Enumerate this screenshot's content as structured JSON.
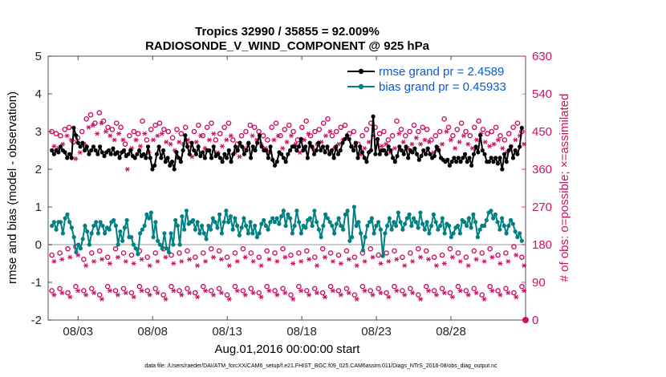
{
  "chart_data": {
    "type": "line",
    "title_line1": "Tropics 32990 / 35855 = 92.009%",
    "title_line2": "RADIOSONDE_V_WIND_COMPONENT @ 925 hPa",
    "xlabel": "Aug.01,2016 00:00:00 start",
    "ylabel_left": "rmse and bias (model - observation)",
    "ylabel_right": "# of obs: o=possible; ×=assimilated",
    "footer": "data file: /Users/raeder/DAI/ATM_forcXX/CAM6_setup/f.e21.FHIST_BGC.f09_025.CAM6assim.011/Diags_NTrS_2016-08/obs_diag_output.nc",
    "xlim": [
      1,
      33
    ],
    "ylim_left": [
      -2,
      5
    ],
    "ylim_right": [
      0,
      630
    ],
    "x_ticks": [
      3,
      8,
      13,
      18,
      23,
      28
    ],
    "x_tick_labels": [
      "08/03",
      "08/08",
      "08/13",
      "08/18",
      "08/23",
      "08/28"
    ],
    "y_left_ticks": [
      -2,
      -1,
      0,
      1,
      2,
      3,
      4,
      5
    ],
    "y_left_tick_labels": [
      "-2",
      "-1",
      "0",
      "1",
      "2",
      "3",
      "4",
      "5"
    ],
    "y_right_ticks": [
      0,
      90,
      180,
      270,
      360,
      450,
      540,
      630
    ],
    "y_right_tick_labels": [
      "0",
      "90",
      "180",
      "270",
      "360",
      "450",
      "540",
      "630"
    ],
    "legend": [
      {
        "name": "rmse grand pr = 2.4589",
        "color": "#000000"
      },
      {
        "name": "bias grand pr = 0.45933",
        "color": "#008080"
      }
    ],
    "colors": {
      "rmse": "#000000",
      "bias": "#008080",
      "obs": "#cc1166",
      "zero_line": "#bbbbbb"
    },
    "x_step": 0.25,
    "rmse": [
      2.5,
      2.4,
      2.5,
      2.45,
      2.6,
      2.5,
      2.45,
      2.3,
      2.4,
      2.3,
      3.1,
      2.9,
      2.7,
      2.6,
      2.7,
      2.5,
      2.6,
      2.4,
      2.5,
      2.6,
      2.5,
      2.4,
      2.6,
      2.45,
      2.35,
      2.45,
      2.5,
      2.4,
      2.55,
      2.4,
      2.45,
      2.3,
      2.45,
      2.5,
      2.35,
      2.4,
      2.5,
      2.35,
      2.3,
      2.4,
      2.5,
      2.35,
      2.4,
      2.3,
      2.6,
      2.3,
      2.0,
      2.1,
      2.4,
      2.6,
      2.3,
      2.5,
      2.2,
      2.3,
      2.1,
      2.2,
      2.0,
      2.45,
      2.3,
      2.2,
      2.5,
      2.9,
      2.6,
      2.4,
      2.7,
      2.5,
      2.4,
      2.6,
      2.35,
      2.45,
      2.3,
      2.5,
      2.5,
      2.3,
      2.6,
      2.35,
      2.4,
      2.3,
      2.2,
      2.4,
      2.3,
      2.5,
      2.2,
      2.4,
      2.6,
      2.5,
      2.7,
      2.6,
      2.4,
      2.5,
      2.7,
      2.3,
      2.6,
      2.5,
      2.7,
      2.9,
      2.6,
      2.5,
      2.5,
      2.3,
      2.6,
      2.25,
      2.1,
      2.2,
      2.45,
      2.4,
      2.3,
      2.2,
      2.4,
      2.5,
      2.6,
      2.6,
      2.5,
      2.6,
      2.8,
      2.5,
      2.6,
      2.3,
      2.7,
      2.6,
      2.4,
      2.5,
      2.7,
      2.5,
      2.6,
      2.45,
      2.6,
      2.4,
      2.5,
      2.3,
      2.6,
      2.4,
      2.5,
      2.7,
      2.8,
      2.9,
      2.8,
      2.6,
      2.5,
      2.7,
      2.3,
      2.6,
      2.45,
      2.3,
      2.2,
      2.45,
      2.5,
      3.4,
      2.4,
      2.8,
      2.4,
      2.5,
      2.5,
      2.4,
      2.6,
      2.5,
      2.3,
      2.2,
      2.35,
      2.6,
      2.5,
      2.4,
      2.6,
      2.3,
      2.5,
      2.45,
      2.55,
      2.4,
      2.25,
      2.35,
      2.5,
      2.4,
      2.55,
      2.4,
      2.3,
      2.35,
      2.6,
      2.5,
      2.3,
      2.25,
      2.2,
      2.25,
      2.1,
      2.2,
      2.3,
      2.2,
      2.3,
      2.2,
      2.3,
      2.4,
      2.2,
      2.3,
      2.1,
      2.4,
      2.6,
      2.45,
      2.9,
      2.5,
      2.4,
      2.2,
      2.2,
      2.3,
      2.2,
      2.3,
      2.15,
      2.3,
      2.0,
      2.4,
      2.2,
      2.5,
      2.6,
      2.3,
      2.5,
      2.4,
      2.6,
      3.1
    ],
    "bias": [
      0.5,
      0.6,
      0.4,
      0.6,
      0.6,
      0.3,
      0.7,
      0.8,
      0.6,
      0.45,
      0.2,
      -0.2,
      0.0,
      -0.1,
      0.15,
      0.5,
      0.35,
      0.0,
      0.3,
      0.5,
      0.6,
      0.3,
      0.6,
      0.5,
      0.3,
      0.45,
      0.4,
      0.6,
      0.65,
      0.5,
      0.0,
      0.35,
      0.1,
      0.45,
      0.65,
      0.2,
      0.2,
      0.0,
      -0.1,
      -0.25,
      0.3,
      0.4,
      0.5,
      0.8,
      0.7,
      0.85,
      0.2,
      0.6,
      0.1,
      0.0,
      -0.1,
      0.3,
      -0.1,
      -0.2,
      0.3,
      0.0,
      0.65,
      0.5,
      0.0,
      0.75,
      0.4,
      0.9,
      0.55,
      0.6,
      0.65,
      0.4,
      0.6,
      0.3,
      0.5,
      0.3,
      0.15,
      0.5,
      0.4,
      0.7,
      0.6,
      0.45,
      0.8,
      0.3,
      0.6,
      0.9,
      0.6,
      0.75,
      0.4,
      0.7,
      0.5,
      0.25,
      0.45,
      0.7,
      0.5,
      0.3,
      0.6,
      0.3,
      0.5,
      0.2,
      0.3,
      0.55,
      0.65,
      0.5,
      0.4,
      0.6,
      0.7,
      0.6,
      0.7,
      0.55,
      0.75,
      0.9,
      0.5,
      0.8,
      0.7,
      0.3,
      0.5,
      0.9,
      0.6,
      0.3,
      0.5,
      0.45,
      0.65,
      0.7,
      0.5,
      0.9,
      0.6,
      0.4,
      0.2,
      0.5,
      0.8,
      0.7,
      0.6,
      0.5,
      0.3,
      0.55,
      0.7,
      0.5,
      0.4,
      0.8,
      0.9,
      0.1,
      0.2,
      1.0,
      0.5,
      0.6,
      0.3,
      -0.15,
      0.2,
      0.5,
      0.6,
      0.7,
      0.3,
      0.5,
      0.6,
      0.4,
      -0.3,
      0.3,
      0.5,
      0.7,
      0.4,
      0.6,
      0.5,
      0.85,
      0.6,
      0.4,
      0.55,
      0.7,
      0.8,
      0.5,
      0.7,
      0.6,
      0.45,
      0.85,
      0.55,
      0.4,
      0.6,
      0.3,
      0.5,
      0.8,
      0.6,
      0.4,
      0.5,
      0.7,
      0.3,
      0.55,
      0.5,
      0.2,
      0.3,
      0.45,
      0.5,
      0.3,
      0.65,
      0.6,
      0.5,
      0.7,
      0.45,
      0.8,
      0.6,
      0.2,
      0.4,
      0.5,
      0.5,
      0.65,
      0.85,
      0.9,
      0.7,
      0.8,
      0.6,
      0.4,
      0.7,
      0.5,
      0.3,
      0.5,
      0.65,
      0.55,
      0.35,
      0.2,
      0.3,
      0.1
    ],
    "obs_possible": [
      450,
      445,
      440,
      455,
      460,
      425,
      435,
      450,
      480,
      490,
      470,
      495,
      475,
      460,
      455,
      470,
      460,
      420,
      440,
      450,
      445,
      475,
      430,
      455,
      465,
      470,
      455,
      450,
      435,
      455,
      445,
      460,
      420,
      450,
      465,
      440,
      460,
      470,
      430,
      445,
      460,
      470,
      430,
      420,
      440,
      450,
      465,
      460,
      450,
      440,
      430,
      460,
      470,
      440,
      455,
      465,
      450,
      430,
      460,
      475,
      440,
      450,
      455,
      470,
      480,
      440,
      450,
      460,
      465,
      445,
      450,
      420,
      440,
      455,
      470,
      460,
      445,
      450,
      430,
      440,
      475,
      455,
      440,
      450,
      465,
      450,
      460,
      455,
      430,
      440,
      450,
      480,
      460,
      440,
      455,
      470,
      450,
      440,
      460,
      475,
      455,
      445,
      450,
      460,
      440,
      430,
      445,
      460,
      470,
      450
    ],
    "obs_assim": [
      415,
      410,
      420,
      440,
      430,
      385,
      400,
      420,
      460,
      465,
      445,
      470,
      450,
      440,
      430,
      445,
      430,
      360,
      410,
      430,
      415,
      445,
      400,
      430,
      440,
      445,
      425,
      420,
      405,
      425,
      420,
      430,
      390,
      425,
      440,
      410,
      430,
      445,
      400,
      415,
      430,
      440,
      400,
      390,
      410,
      420,
      440,
      430,
      420,
      410,
      400,
      430,
      440,
      410,
      425,
      440,
      420,
      400,
      430,
      445,
      410,
      420,
      425,
      440,
      450,
      410,
      420,
      430,
      435,
      415,
      420,
      395,
      410,
      425,
      440,
      430,
      415,
      420,
      400,
      410,
      445,
      425,
      410,
      420,
      435,
      420,
      430,
      425,
      400,
      410,
      420,
      450,
      430,
      410,
      425,
      440,
      420,
      410,
      430,
      445,
      425,
      415,
      420,
      430,
      410,
      400,
      415,
      430,
      440,
      420
    ],
    "obs_possible_low": [
      155,
      160,
      170,
      175,
      145,
      160,
      165,
      150,
      170,
      160,
      155,
      165,
      150,
      160,
      170,
      155,
      160,
      165,
      150,
      160,
      170,
      165,
      150,
      160,
      170,
      160,
      150,
      165,
      160,
      170,
      155,
      160,
      165,
      150,
      170,
      160,
      155,
      165,
      150,
      160,
      170,
      155,
      160,
      165,
      150,
      160,
      170,
      165,
      150,
      155,
      170,
      160,
      150,
      165,
      160,
      170,
      155,
      160,
      175,
      150
    ],
    "obs_assim_low": [
      140,
      145,
      150,
      155,
      130,
      140,
      145,
      135,
      150,
      140,
      135,
      145,
      130,
      140,
      150,
      135,
      140,
      145,
      130,
      140,
      150,
      145,
      130,
      140,
      150,
      140,
      130,
      145,
      140,
      150,
      135,
      140,
      145,
      130,
      150,
      140,
      135,
      145,
      130,
      140,
      150,
      135,
      140,
      145,
      130,
      140,
      150,
      145,
      130,
      135,
      150,
      140,
      130,
      145,
      140,
      150,
      135,
      140,
      155,
      130
    ],
    "obs_possible_vlow": [
      70,
      75,
      65,
      80,
      70,
      75,
      60,
      80,
      70,
      75,
      65,
      80,
      70,
      75,
      60,
      80,
      70,
      75,
      65,
      80,
      70,
      75,
      60,
      80,
      70,
      75,
      65,
      80,
      70,
      75,
      60,
      80,
      70,
      75,
      65,
      80,
      70,
      75,
      60,
      80,
      70,
      75,
      65,
      80,
      70,
      75,
      60,
      80,
      70,
      75,
      65,
      80,
      70,
      75,
      60,
      80,
      70,
      75,
      65,
      80
    ],
    "obs_assim_vlow": [
      60,
      65,
      55,
      70,
      60,
      65,
      50,
      70,
      60,
      65,
      55,
      70,
      60,
      65,
      50,
      70,
      60,
      65,
      55,
      70,
      60,
      65,
      50,
      70,
      60,
      65,
      55,
      70,
      60,
      65,
      50,
      70,
      60,
      65,
      55,
      70,
      60,
      65,
      50,
      70,
      60,
      65,
      55,
      70,
      60,
      65,
      50,
      70,
      60,
      65,
      55,
      70,
      60,
      65,
      50,
      70,
      60,
      65,
      55,
      70
    ]
  }
}
